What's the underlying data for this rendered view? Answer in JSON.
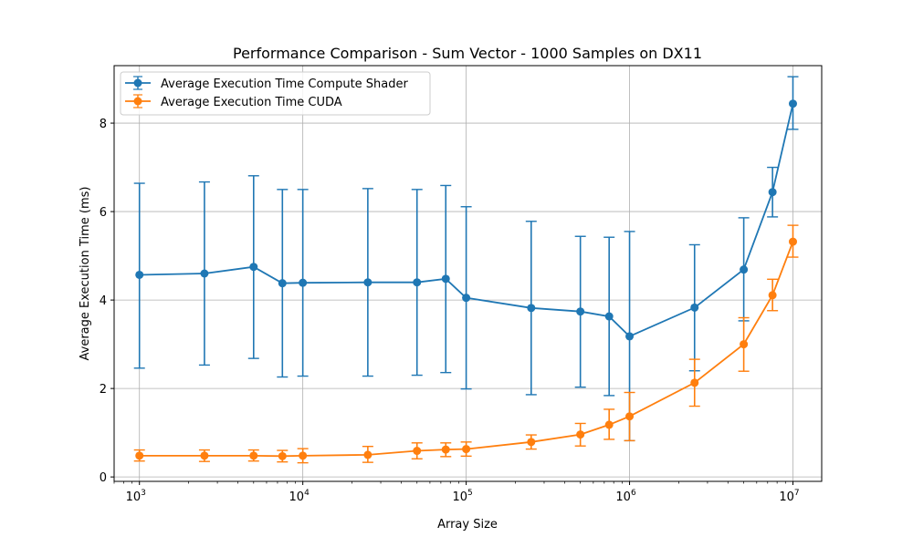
{
  "chart_data": {
    "type": "line",
    "title": "Performance Comparison - Sum Vector - 1000 Samples on DX11",
    "xlabel": "Array Size",
    "ylabel": "Average Execution Time (ms)",
    "xscale": "log",
    "xlim": [
      700,
      15000000
    ],
    "ylim": [
      -0.1,
      9.3
    ],
    "yticks": [
      0,
      2,
      4,
      6,
      8
    ],
    "xticks": [
      {
        "value": 1000,
        "base": "10",
        "exp": "3"
      },
      {
        "value": 10000,
        "base": "10",
        "exp": "4"
      },
      {
        "value": 100000,
        "base": "10",
        "exp": "5"
      },
      {
        "value": 1000000,
        "base": "10",
        "exp": "6"
      },
      {
        "value": 10000000,
        "base": "10",
        "exp": "7"
      }
    ],
    "grid": true,
    "legend_position": "top-left",
    "x": [
      1000,
      2500,
      5000,
      7500,
      10000,
      25000,
      50000,
      75000,
      100000,
      250000,
      500000,
      750000,
      1000000,
      2500000,
      5000000,
      7500000,
      10000000
    ],
    "series": [
      {
        "name": "Average Execution Time Compute Shader",
        "color": "#1f77b4",
        "values": [
          4.57,
          4.6,
          4.75,
          4.38,
          4.39,
          4.4,
          4.4,
          4.48,
          4.05,
          3.82,
          3.74,
          3.63,
          3.18,
          3.83,
          4.69,
          6.44,
          8.44
        ],
        "err_low": [
          2.46,
          2.53,
          2.68,
          2.26,
          2.28,
          2.28,
          2.3,
          2.36,
          1.99,
          1.86,
          2.03,
          1.84,
          0.82,
          2.4,
          3.53,
          5.88,
          7.86
        ],
        "err_high": [
          6.64,
          6.67,
          6.81,
          6.5,
          6.5,
          6.52,
          6.5,
          6.59,
          6.11,
          5.78,
          5.44,
          5.42,
          5.55,
          5.25,
          5.86,
          7.0,
          9.05
        ]
      },
      {
        "name": "Average Execution Time CUDA",
        "color": "#ff7f0e",
        "values": [
          0.48,
          0.48,
          0.48,
          0.47,
          0.48,
          0.5,
          0.59,
          0.62,
          0.63,
          0.79,
          0.96,
          1.18,
          1.37,
          2.13,
          3.0,
          4.11,
          5.32
        ],
        "err_low": [
          0.36,
          0.35,
          0.36,
          0.34,
          0.32,
          0.33,
          0.41,
          0.46,
          0.47,
          0.63,
          0.7,
          0.85,
          0.82,
          1.6,
          2.39,
          3.76,
          4.97
        ],
        "err_high": [
          0.61,
          0.61,
          0.61,
          0.6,
          0.64,
          0.69,
          0.77,
          0.77,
          0.79,
          0.95,
          1.21,
          1.53,
          1.91,
          2.66,
          3.6,
          4.47,
          5.69
        ]
      }
    ]
  }
}
